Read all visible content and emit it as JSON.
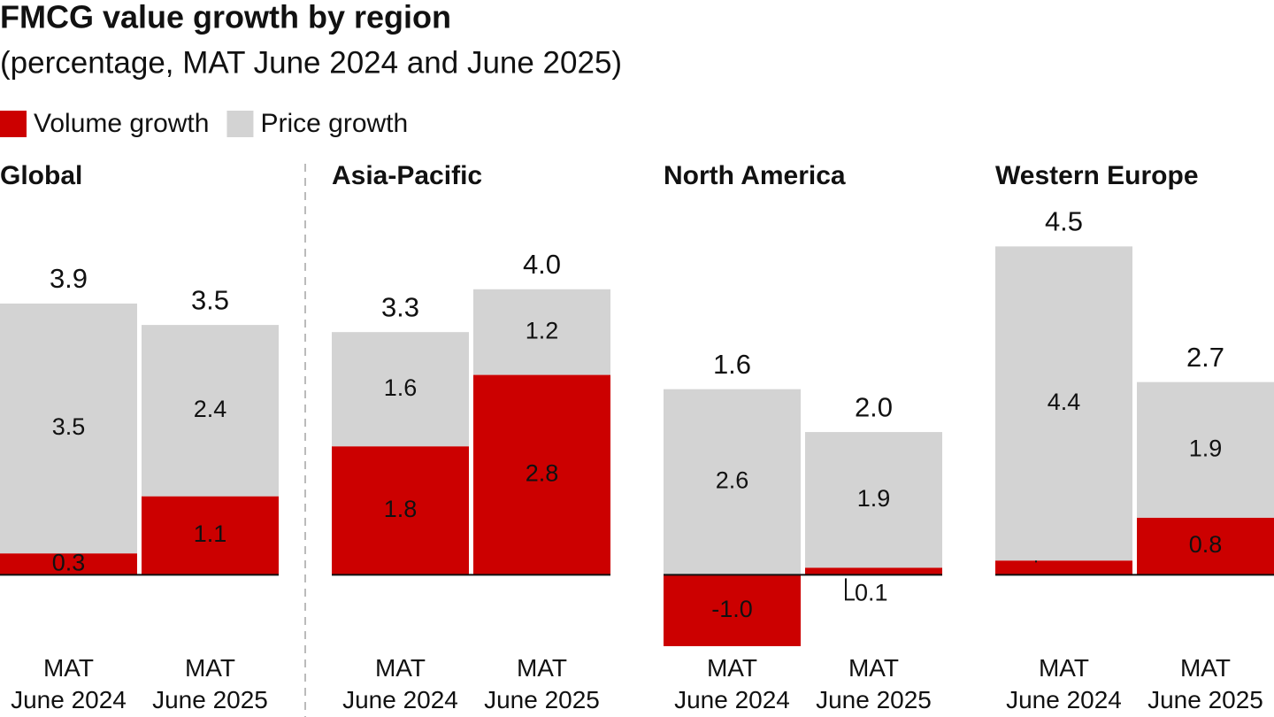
{
  "title": "FMCG value growth by region",
  "subtitle": "(percentage, MAT June 2024 and June 2025)",
  "chart_data": [
    {
      "type": "stacked_bar",
      "title": "Global",
      "categories": [
        "MAT\nJune 2024",
        "MAT\nJune 2025"
      ],
      "series": [
        {
          "name": "Volume growth",
          "color": "#cc0000",
          "values": [
            0.3,
            1.1
          ]
        },
        {
          "name": "Price growth",
          "color": "#d3d3d3",
          "values": [
            3.5,
            2.4
          ]
        }
      ],
      "totals": [
        3.9,
        3.5
      ],
      "ylim": [
        -1,
        5.2
      ]
    },
    {
      "type": "stacked_bar",
      "title": "Asia-Pacific",
      "categories": [
        "MAT\nJune 2024",
        "MAT\nJune 2025"
      ],
      "series": [
        {
          "color": "#cc0000",
          "values": [
            1.8,
            2.8
          ]
        },
        {
          "color": "#d3d3d3",
          "values": [
            1.6,
            1.2
          ]
        }
      ],
      "totals": [
        3.3,
        4.0
      ],
      "total_labels": [
        "3.3",
        "4.0"
      ],
      "ylim": [
        -1,
        5.2
      ]
    },
    {
      "type": "stacked_bar",
      "title": "North America",
      "categories": [
        "MAT\nJune 2024",
        "MAT\nJune 2025"
      ],
      "series": [
        {
          "color": "#cc0000",
          "values": [
            -1.0,
            0.1
          ],
          "value_labels": [
            "-1.0",
            "0.1"
          ]
        },
        {
          "color": "#d3d3d3",
          "values": [
            2.6,
            1.9
          ]
        }
      ],
      "totals": [
        1.6,
        2.0
      ],
      "total_labels": [
        "1.6",
        "2.0"
      ],
      "ylim": [
        -1,
        5.2
      ]
    },
    {
      "type": "stacked_bar",
      "title": "Western Europe",
      "categories": [
        "MAT\nJune 2024",
        "MAT\nJune 2025"
      ],
      "series": [
        {
          "color": "#cc0000",
          "values": [
            0.2,
            0.8
          ]
        },
        {
          "color": "#d3d3d3",
          "values": [
            4.4,
            1.9
          ]
        }
      ],
      "totals": [
        4.5,
        2.7
      ],
      "ylim": [
        -1,
        5.2
      ]
    }
  ]
}
